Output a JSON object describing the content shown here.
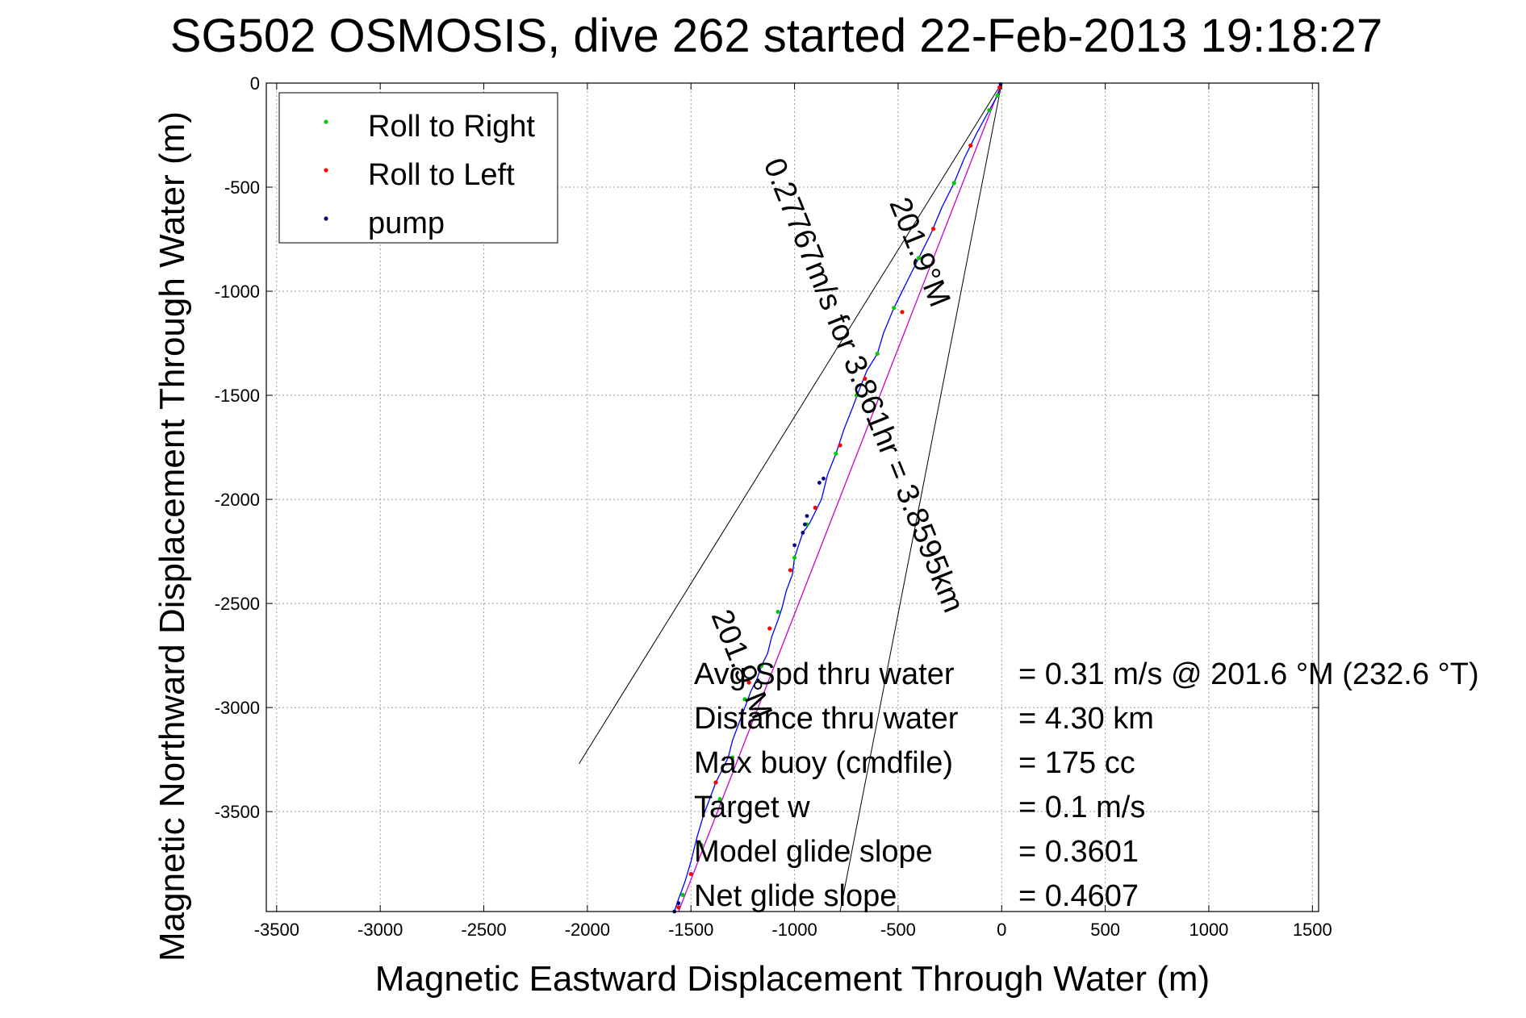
{
  "chart_data": {
    "type": "scatter",
    "title": "SG502 OSMOSIS, dive 262 started 22-Feb-2013 19:18:27",
    "xlabel": "Magnetic Eastward Displacement Through Water (m)",
    "ylabel": "Magnetic Northward Displacement Through Water (m)",
    "xlim": [
      -3550,
      1530
    ],
    "ylim": [
      -3980,
      0
    ],
    "xticks": [
      -3500,
      -3000,
      -2500,
      -2000,
      -1500,
      -1000,
      -500,
      0,
      500,
      1000,
      1500
    ],
    "yticks": [
      0,
      -500,
      -1000,
      -1500,
      -2000,
      -2500,
      -3000,
      -3500
    ],
    "grid": true,
    "legend_position": "top-left",
    "legend": [
      {
        "label": "Roll to Right",
        "color": "#00cc00"
      },
      {
        "label": "Roll to Left",
        "color": "#ff0000"
      },
      {
        "label": "pump",
        "color": "#000080"
      }
    ],
    "track": {
      "color": "#0000ff",
      "x": [
        0,
        -20,
        -60,
        -120,
        -180,
        -230,
        -290,
        -340,
        -400,
        -460,
        -520,
        -570,
        -600,
        -650,
        -690,
        -720,
        -760,
        -800,
        -840,
        -870,
        -900,
        -930,
        -960,
        -980,
        -1000,
        -1010,
        -1040,
        -1060,
        -1080,
        -1110,
        -1130,
        -1160,
        -1180,
        -1210,
        -1240,
        -1270,
        -1300,
        -1320,
        -1350,
        -1380,
        -1410,
        -1440,
        -1470,
        -1500,
        -1530,
        -1560,
        -1580
      ],
      "y": [
        0,
        -60,
        -130,
        -240,
        -360,
        -480,
        -600,
        -720,
        -840,
        -960,
        -1080,
        -1200,
        -1300,
        -1380,
        -1480,
        -1560,
        -1660,
        -1780,
        -1880,
        -2000,
        -2060,
        -2120,
        -2160,
        -2220,
        -2280,
        -2360,
        -2440,
        -2520,
        -2580,
        -2660,
        -2740,
        -2800,
        -2860,
        -2920,
        -3000,
        -3080,
        -3160,
        -3240,
        -3300,
        -3360,
        -3440,
        -3520,
        -3620,
        -3740,
        -3840,
        -3920,
        -3980
      ]
    },
    "course_line": {
      "color": "#cc00cc",
      "from": [
        0,
        0
      ],
      "to": [
        -1560,
        -3980
      ]
    },
    "roll_right": {
      "x": [
        -20,
        -60,
        -230,
        -400,
        -520,
        -600,
        -700,
        -800,
        -940,
        -1000,
        -1080,
        -1160,
        -1240,
        -1300,
        -1360,
        -1450,
        -1540
      ],
      "y": [
        -60,
        -130,
        -480,
        -840,
        -1080,
        -1300,
        -1500,
        -1780,
        -2120,
        -2280,
        -2540,
        -2800,
        -2960,
        -3240,
        -3440,
        -3660,
        -3900
      ]
    },
    "roll_left": {
      "x": [
        -10,
        -150,
        -330,
        -480,
        -660,
        -780,
        -900,
        -1020,
        -1120,
        -1220,
        -1380,
        -1500,
        -1560
      ],
      "y": [
        -20,
        -300,
        -700,
        -1100,
        -1420,
        -1740,
        -2040,
        -2340,
        -2620,
        -2880,
        -3360,
        -3800,
        -3960
      ]
    },
    "pump": {
      "x": [
        -5,
        -860,
        -880,
        -940,
        -950,
        -960,
        -1000,
        -1560,
        -1580
      ],
      "y": [
        -5,
        -1900,
        -1920,
        -2080,
        -2120,
        -2160,
        -2220,
        -3940,
        -3980
      ]
    },
    "envelope_lines": [
      {
        "from": [
          0,
          0
        ],
        "to": [
          -2040,
          -3270
        ]
      },
      {
        "from": [
          0,
          0
        ],
        "to": [
          -780,
          -3980
        ]
      }
    ],
    "annotations": [
      {
        "text": "201.9°M",
        "x": -440,
        "y": -830,
        "rotation": 68
      },
      {
        "text": "0.27767m/s for 3.861hr = 3.8595km",
        "x": -710,
        "y": -1470,
        "rotation": 68
      },
      {
        "text": "201.9°M",
        "x": -1300,
        "y": -2810,
        "rotation": 68
      }
    ],
    "stats": [
      {
        "label": "Avg Spd thru water",
        "value": "=  0.31 m/s @ 201.6 °M (232.6 °T)"
      },
      {
        "label": "Distance thru water",
        "value": "=  4.30 km"
      },
      {
        "label": "Max buoy (cmdfile)",
        "value": "= 175 cc"
      },
      {
        "label": "Target w",
        "value": "= 0.1 m/s"
      },
      {
        "label": "Model glide slope",
        "value": "= 0.3601"
      },
      {
        "label": "Net glide slope",
        "value": "= 0.4607"
      }
    ]
  }
}
